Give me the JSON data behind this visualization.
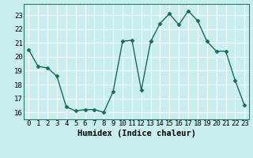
{
  "x": [
    0,
    1,
    2,
    3,
    4,
    5,
    6,
    7,
    8,
    9,
    10,
    11,
    12,
    13,
    14,
    15,
    16,
    17,
    18,
    19,
    20,
    21,
    22,
    23
  ],
  "y": [
    20.5,
    19.3,
    19.2,
    18.6,
    16.4,
    16.1,
    16.2,
    16.2,
    16.0,
    17.5,
    21.1,
    21.2,
    17.6,
    21.1,
    22.4,
    23.1,
    22.3,
    23.3,
    22.6,
    21.1,
    20.4,
    20.4,
    18.3,
    16.5
  ],
  "line_color": "#1a6b5a",
  "marker": "D",
  "markersize": 2.5,
  "linewidth": 1.0,
  "bg_color": "#c8eef0",
  "grid_color": "#ffffff",
  "xlabel": "Humidex (Indice chaleur)",
  "ylim": [
    15.5,
    23.8
  ],
  "xlim": [
    -0.5,
    23.5
  ],
  "yticks": [
    16,
    17,
    18,
    19,
    20,
    21,
    22,
    23
  ],
  "xticks": [
    0,
    1,
    2,
    3,
    4,
    5,
    6,
    7,
    8,
    9,
    10,
    11,
    12,
    13,
    14,
    15,
    16,
    17,
    18,
    19,
    20,
    21,
    22,
    23
  ],
  "tick_fontsize": 6.5,
  "xlabel_fontsize": 7.5
}
